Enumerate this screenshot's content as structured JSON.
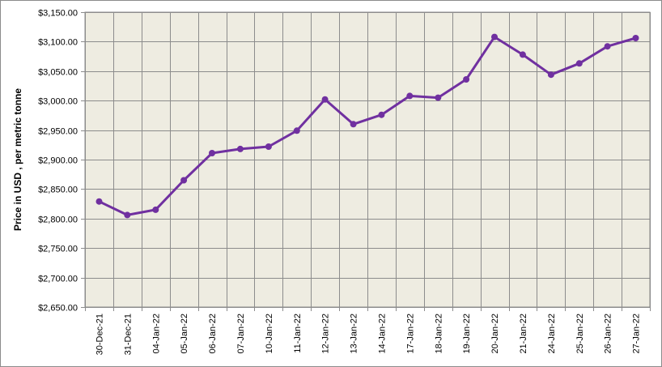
{
  "chart_data": {
    "type": "line",
    "title": "",
    "xlabel": "",
    "ylabel": "Price in USD , per metric tonne",
    "categories": [
      "30-Dec-21",
      "31-Dec-21",
      "04-Jan-22",
      "05-Jan-22",
      "06-Jan-22",
      "07-Jan-22",
      "10-Jan-22",
      "11-Jan-22",
      "12-Jan-22",
      "13-Jan-22",
      "14-Jan-22",
      "17-Jan-22",
      "18-Jan-22",
      "19-Jan-22",
      "20-Jan-22",
      "21-Jan-22",
      "24-Jan-22",
      "25-Jan-22",
      "26-Jan-22",
      "27-Jan-22"
    ],
    "series": [
      {
        "values": [
          2829,
          2806,
          2815,
          2865,
          2911,
          2918,
          2922,
          2949,
          3002,
          2960,
          2976,
          3008,
          3005,
          3036,
          3108,
          3078,
          3044,
          3063,
          3092,
          3106
        ]
      }
    ],
    "ylim": [
      2650,
      3150
    ],
    "yticks": [
      2650,
      2700,
      2750,
      2800,
      2850,
      2900,
      2950,
      3000,
      3050,
      3100,
      3150
    ],
    "ytick_labels": [
      "$2,650.00",
      "$2,700.00",
      "$2,750.00",
      "$2,800.00",
      "$2,850.00",
      "$2,900.00",
      "$2,950.00",
      "$3,000.00",
      "$3,050.00",
      "$3,100.00",
      "$3,150.00"
    ],
    "grid": true,
    "legend": "none",
    "colors": {
      "line": "#7030a0",
      "plot_background": "#eeece1",
      "grid": "#8c8c8c"
    }
  }
}
